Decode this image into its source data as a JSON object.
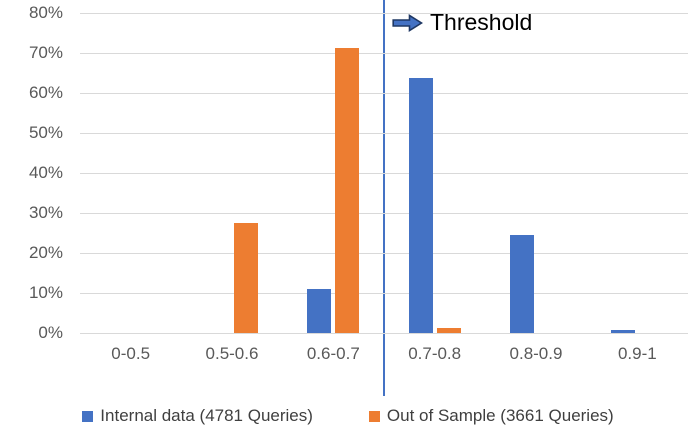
{
  "chart_data": {
    "type": "bar",
    "title": "",
    "categories": [
      "0-0.5",
      "0.5-0.6",
      "0.6-0.7",
      "0.7-0.8",
      "0.8-0.9",
      "0.9-1"
    ],
    "series": [
      {
        "name": "Internal data (4781 Queries)",
        "color": "#4472C4",
        "values": [
          0,
          0,
          11,
          63.7,
          24.5,
          0.7
        ]
      },
      {
        "name": "Out of Sample (3661 Queries)",
        "color": "#ED7D31",
        "values": [
          0,
          27.5,
          71.2,
          1.2,
          0,
          0
        ]
      }
    ],
    "xlabel": "",
    "ylabel": "",
    "ylim": [
      0,
      80
    ],
    "yticklabels": [
      "0%",
      "10%",
      "20%",
      "30%",
      "40%",
      "50%",
      "60%",
      "70%",
      "80%"
    ],
    "grid": true,
    "legend_position": "bottom",
    "annotation": {
      "label": "Threshold",
      "icon": "right-block-arrow"
    },
    "threshold_boundary_index": 3,
    "threshold_color": "#4472C4",
    "arrow_fill": "#4472C4",
    "arrow_outline": "#1F3864",
    "gridline_color": "#D9D9D9",
    "axis_text_color": "#595959"
  }
}
